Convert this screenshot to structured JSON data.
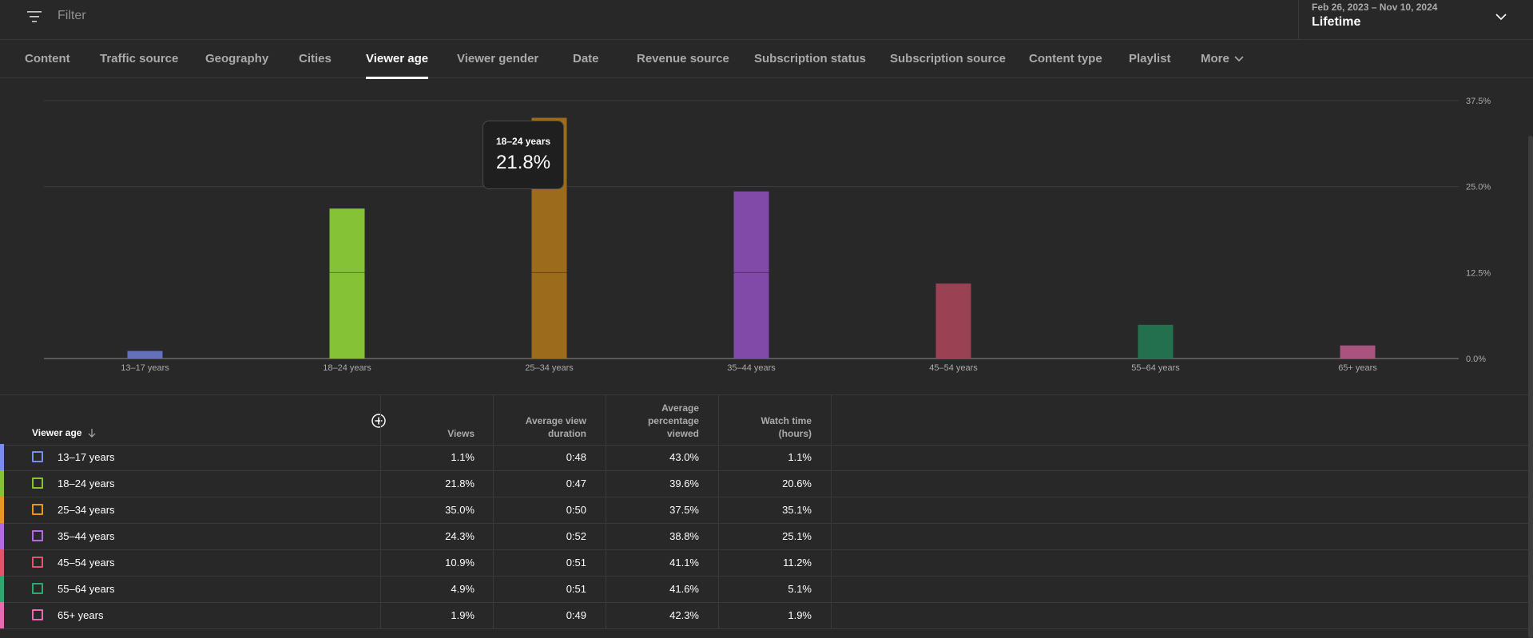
{
  "filter": {
    "placeholder": "Filter",
    "icon": "filter-icon"
  },
  "date": {
    "range": "Feb 26, 2023 – Nov 10, 2024",
    "label": "Lifetime",
    "icon": "chevron-down-icon"
  },
  "tabs": [
    {
      "label": "Content"
    },
    {
      "label": "Traffic source"
    },
    {
      "label": "Geography"
    },
    {
      "label": "Cities"
    },
    {
      "label": "Viewer age",
      "active": true
    },
    {
      "label": "Viewer gender"
    },
    {
      "label": "Date"
    },
    {
      "label": "Revenue source"
    },
    {
      "label": "Subscription status"
    },
    {
      "label": "Subscription source"
    },
    {
      "label": "Content type"
    },
    {
      "label": "Playlist"
    },
    {
      "label": "More"
    }
  ],
  "tooltip": {
    "label": "18–24 years",
    "value": "21.8%"
  },
  "chart_data": {
    "type": "bar",
    "categories": [
      "13–17 years",
      "18–24 years",
      "25–34 years",
      "35–44 years",
      "45–54 years",
      "55–64 years",
      "65+ years"
    ],
    "values": [
      1.1,
      21.8,
      35.0,
      24.3,
      10.9,
      4.9,
      1.9
    ],
    "colors": [
      "#6471b8",
      "#85c236",
      "#9c6b1c",
      "#8149a8",
      "#9a4253",
      "#23704f",
      "#a9537f"
    ],
    "y_ticks": [
      "37.5%",
      "25.0%",
      "12.5%",
      "0.0%"
    ],
    "ylim": [
      0,
      37.5
    ],
    "grid": true,
    "axis_position": "right"
  },
  "table": {
    "headers": {
      "viewer_age": "Viewer age",
      "views": "Views",
      "avg_view_duration": [
        "Average view",
        "duration"
      ],
      "avg_pct_viewed": [
        "Average",
        "percentage",
        "viewed"
      ],
      "watch_time": [
        "Watch time",
        "(hours)"
      ]
    },
    "rows": [
      {
        "label": "13–17 years",
        "views": "1.1%",
        "duration": "0:48",
        "pct": "43.0%",
        "watch": "1.1%",
        "color": "#7b8cf0"
      },
      {
        "label": "18–24 years",
        "views": "21.8%",
        "duration": "0:47",
        "pct": "39.6%",
        "watch": "20.6%",
        "color": "#85c236"
      },
      {
        "label": "25–34 years",
        "views": "35.0%",
        "duration": "0:50",
        "pct": "37.5%",
        "watch": "35.1%",
        "color": "#e8971c"
      },
      {
        "label": "35–44 years",
        "views": "24.3%",
        "duration": "0:52",
        "pct": "38.8%",
        "watch": "25.1%",
        "color": "#b26be0"
      },
      {
        "label": "45–54 years",
        "views": "10.9%",
        "duration": "0:51",
        "pct": "41.1%",
        "watch": "11.2%",
        "color": "#e0556e"
      },
      {
        "label": "55–64 years",
        "views": "4.9%",
        "duration": "0:51",
        "pct": "41.6%",
        "watch": "5.1%",
        "color": "#2ea86f"
      },
      {
        "label": "65+ years",
        "views": "1.9%",
        "duration": "0:49",
        "pct": "42.3%",
        "watch": "1.9%",
        "color": "#e86ab0"
      }
    ]
  }
}
